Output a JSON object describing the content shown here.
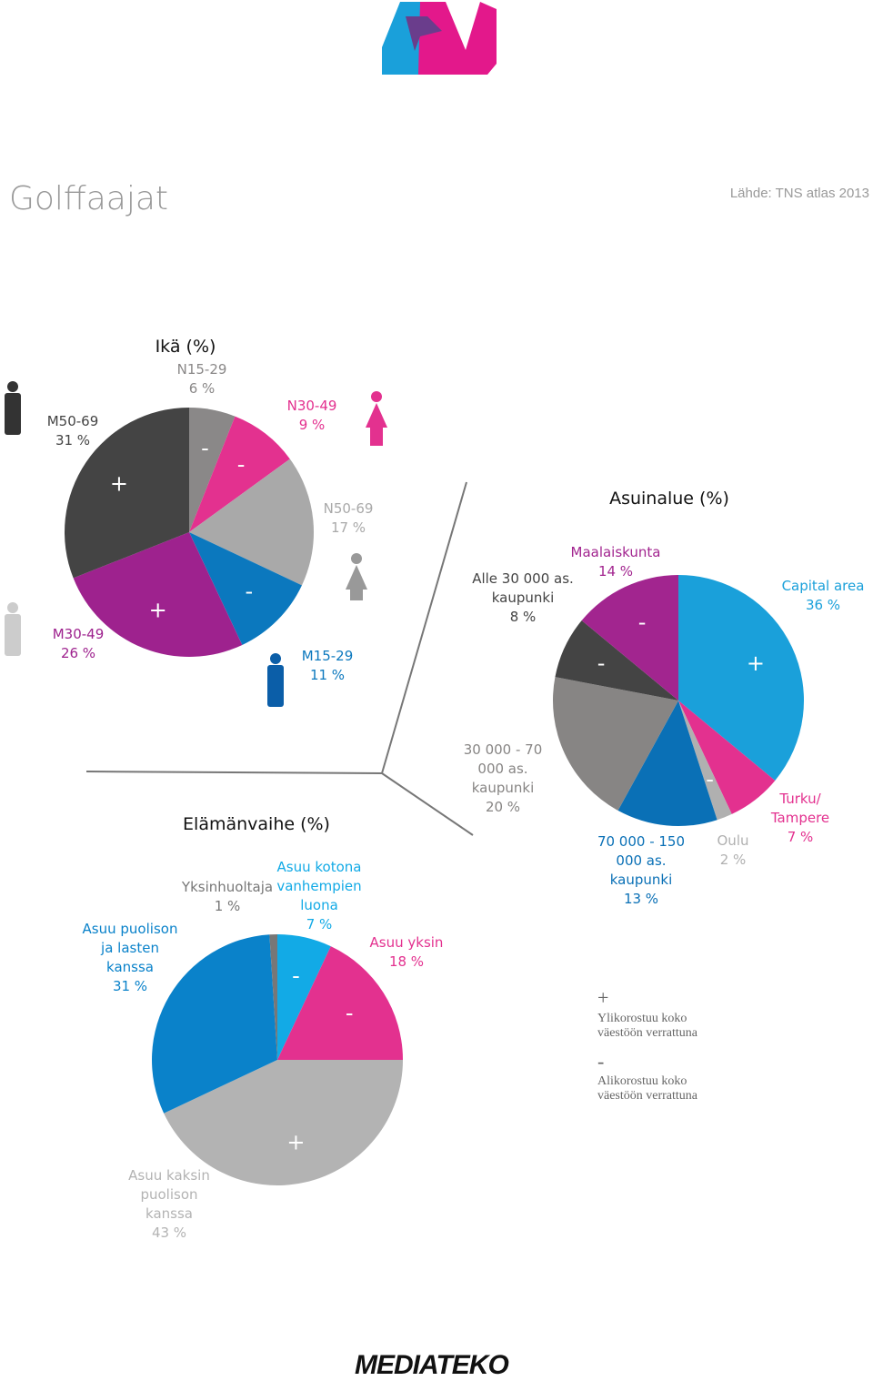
{
  "header": {
    "title": "Golffaajat",
    "source": "Lähde: TNS atlas 2013"
  },
  "chart_data": [
    {
      "type": "pie",
      "title": "Ikä (%)",
      "categories": [
        "N15-29",
        "N30-49",
        "N50-69",
        "M15-29",
        "M30-49",
        "M50-69"
      ],
      "values": [
        6,
        9,
        17,
        11,
        26,
        31
      ],
      "value_labels": [
        "6 %",
        "9 %",
        "17 %",
        "11 %",
        "26 %",
        "31 %"
      ],
      "colors": [
        "#8a8888",
        "#e3318f",
        "#a9a9a9",
        "#0b78be",
        "#9e228e",
        "#444444"
      ],
      "markers": [
        "-",
        "-",
        null,
        "-",
        "+",
        "+"
      ]
    },
    {
      "type": "pie",
      "title": "Asuinalue (%)",
      "categories": [
        "Capital area",
        "Turku/ Tampere",
        "Oulu",
        "70 000 - 150 000 as. kaupunki",
        "30 000 - 70 000 as. kaupunki",
        "Alle 30 000 as. kaupunki",
        "Maalaiskunta"
      ],
      "values": [
        36,
        7,
        2,
        13,
        20,
        8,
        14
      ],
      "value_labels": [
        "36 %",
        "7 %",
        "2 %",
        "13 %",
        "20 %",
        "8 %",
        "14 %"
      ],
      "colors": [
        "#1aa0da",
        "#e3318f",
        "#b0b0b0",
        "#0a70b6",
        "#878584",
        "#444444",
        "#a2258f"
      ],
      "markers": [
        "+",
        null,
        "-",
        null,
        null,
        "-",
        "-"
      ]
    },
    {
      "type": "pie",
      "title": "Elämänvaihe (%)",
      "categories": [
        "Asuu kotona vanhempien luona",
        "Asuu yksin",
        "Asuu kaksin puolison kanssa",
        "Asuu puolison ja lasten kanssa",
        "Yksinhuoltaja"
      ],
      "values": [
        7,
        18,
        43,
        31,
        1
      ],
      "value_labels": [
        "7 %",
        "18 %",
        "43 %",
        "31 %",
        "1 %"
      ],
      "colors": [
        "#12aae6",
        "#e3318f",
        "#b3b3b3",
        "#0a82ca",
        "#777777"
      ],
      "markers": [
        "-",
        "-",
        "+",
        null,
        null
      ]
    }
  ],
  "legend": [
    {
      "symbol": "+",
      "text": "Ylikorostuu koko väestöön verrattuna"
    },
    {
      "symbol": "-",
      "text": "Alikorostuu koko väestöön verrattuna"
    }
  ],
  "footer": {
    "logo": "MEDIATEKO"
  }
}
